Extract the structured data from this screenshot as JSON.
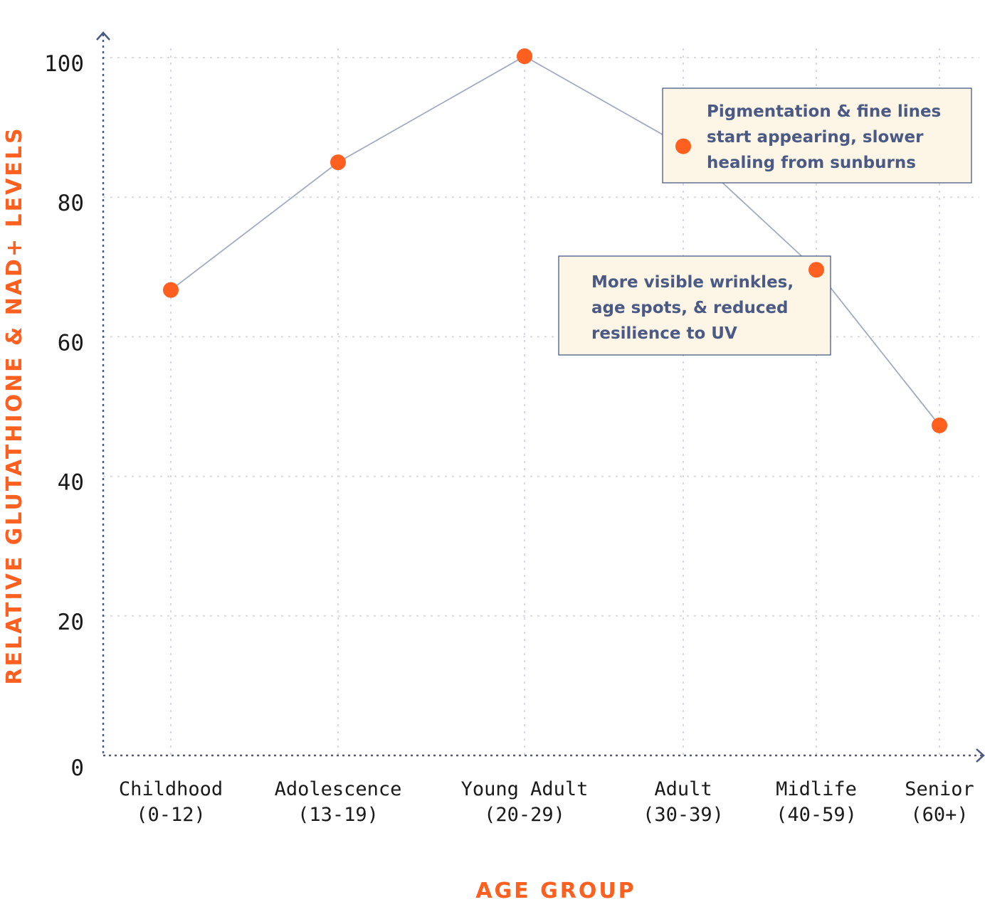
{
  "chart_data": {
    "type": "line",
    "categories": [
      [
        "Childhood",
        "(0-12)"
      ],
      [
        "Adolescence",
        "(13-19)"
      ],
      [
        "Young Adult",
        "(20-29)"
      ],
      [
        "Adult",
        "(30-39)"
      ],
      [
        "Midlife",
        "(40-59)"
      ],
      [
        "Senior",
        "(60+)"
      ]
    ],
    "values": [
      66.7,
      85.0,
      100.2,
      87.3,
      69.6,
      47.3
    ],
    "xlabel": "AGE GROUP",
    "ylabel": "RELATIVE GLUTATHIONE & NAD+ LEVELS",
    "ylim": [
      0,
      100
    ],
    "yticks": [
      "0",
      "20",
      "40",
      "60",
      "80",
      "100"
    ],
    "grid": true,
    "annotations": [
      {
        "category_index": 3,
        "lines": [
          "Pigmentation & fine lines",
          "start appearing, slower",
          "healing from sunburns"
        ]
      },
      {
        "category_index": 4,
        "lines": [
          "More visible wrinkles,",
          "age spots, & reduced",
          "resilience to UV"
        ]
      }
    ],
    "colors": {
      "marker": "#ff5f1f",
      "line": "#a3abc3",
      "axis": "#4a5a85",
      "grid": "#d8dbe3",
      "axis_title": "#ff5f1f",
      "annotation_text": "#4a5a85",
      "annotation_bg": "#fdf6e6",
      "annotation_border": "#4a5a85"
    }
  }
}
